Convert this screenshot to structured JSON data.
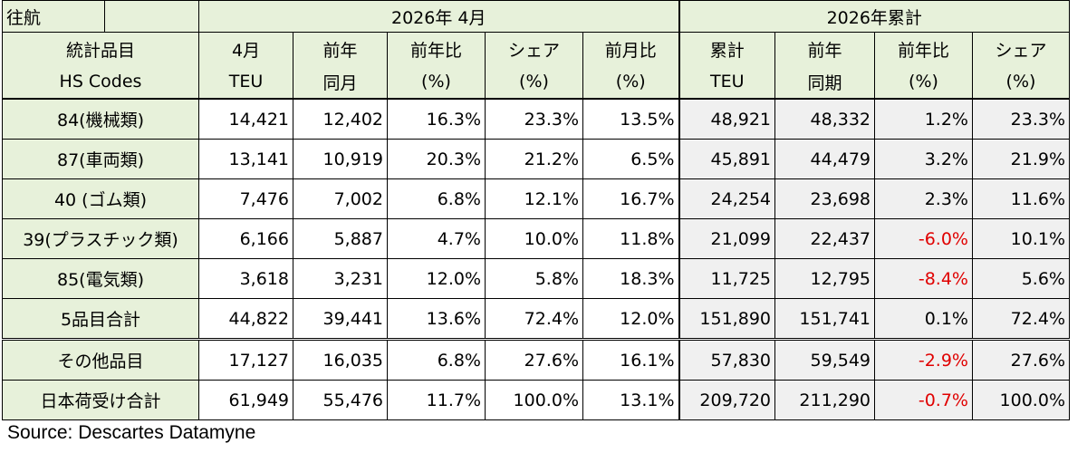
{
  "corner_label": "往航",
  "group_april": "2026年 4月",
  "group_cumulative": "2026年累計",
  "item_header_line1": "統計品目",
  "item_header_line2": "HS Codes",
  "columns": [
    {
      "l1": "4月",
      "l2": "TEU"
    },
    {
      "l1": "前年",
      "l2": "同月"
    },
    {
      "l1": "前年比",
      "l2": "(%)"
    },
    {
      "l1": "シェア",
      "l2": "(%)"
    },
    {
      "l1": "前月比",
      "l2": "(%)"
    },
    {
      "l1": "累計",
      "l2": "TEU"
    },
    {
      "l1": "前年",
      "l2": "同期"
    },
    {
      "l1": "前年比",
      "l2": "(%)"
    },
    {
      "l1": "シェア",
      "l2": "(%)"
    }
  ],
  "rows": [
    {
      "label": "84(機械類)",
      "values": [
        "14,421",
        "12,402",
        "16.3%",
        "23.3%",
        "13.5%",
        "48,921",
        "48,332",
        "1.2%",
        "23.3%"
      ]
    },
    {
      "label": "87(車両類)",
      "values": [
        "13,141",
        "10,919",
        "20.3%",
        "21.2%",
        "6.5%",
        "45,891",
        "44,479",
        "3.2%",
        "21.9%"
      ]
    },
    {
      "label": "40 (ゴム類)",
      "values": [
        "7,476",
        "7,002",
        "6.8%",
        "12.1%",
        "16.7%",
        "24,254",
        "23,698",
        "2.3%",
        "11.6%"
      ]
    },
    {
      "label": "39(プラスチック類)",
      "values": [
        "6,166",
        "5,887",
        "4.7%",
        "10.0%",
        "11.8%",
        "21,099",
        "22,437",
        "-6.0%",
        "10.1%"
      ]
    },
    {
      "label": "85(電気類)",
      "values": [
        "3,618",
        "3,231",
        "12.0%",
        "5.8%",
        "18.3%",
        "11,725",
        "12,795",
        "-8.4%",
        "5.6%"
      ]
    },
    {
      "label": "5品目合計",
      "values": [
        "44,822",
        "39,441",
        "13.6%",
        "72.4%",
        "12.0%",
        "151,890",
        "151,741",
        "0.1%",
        "72.4%"
      ]
    },
    {
      "label": "その他品目",
      "values": [
        "17,127",
        "16,035",
        "6.8%",
        "27.6%",
        "16.1%",
        "57,830",
        "59,549",
        "-2.9%",
        "27.6%"
      ]
    },
    {
      "label": "日本荷受け合計",
      "values": [
        "61,949",
        "55,476",
        "11.7%",
        "100.0%",
        "13.1%",
        "209,720",
        "211,290",
        "-0.7%",
        "100.0%"
      ]
    }
  ],
  "negative_color": "#e00000",
  "header_color": "#e7f1da",
  "source": "Source: Descartes Datamyne"
}
